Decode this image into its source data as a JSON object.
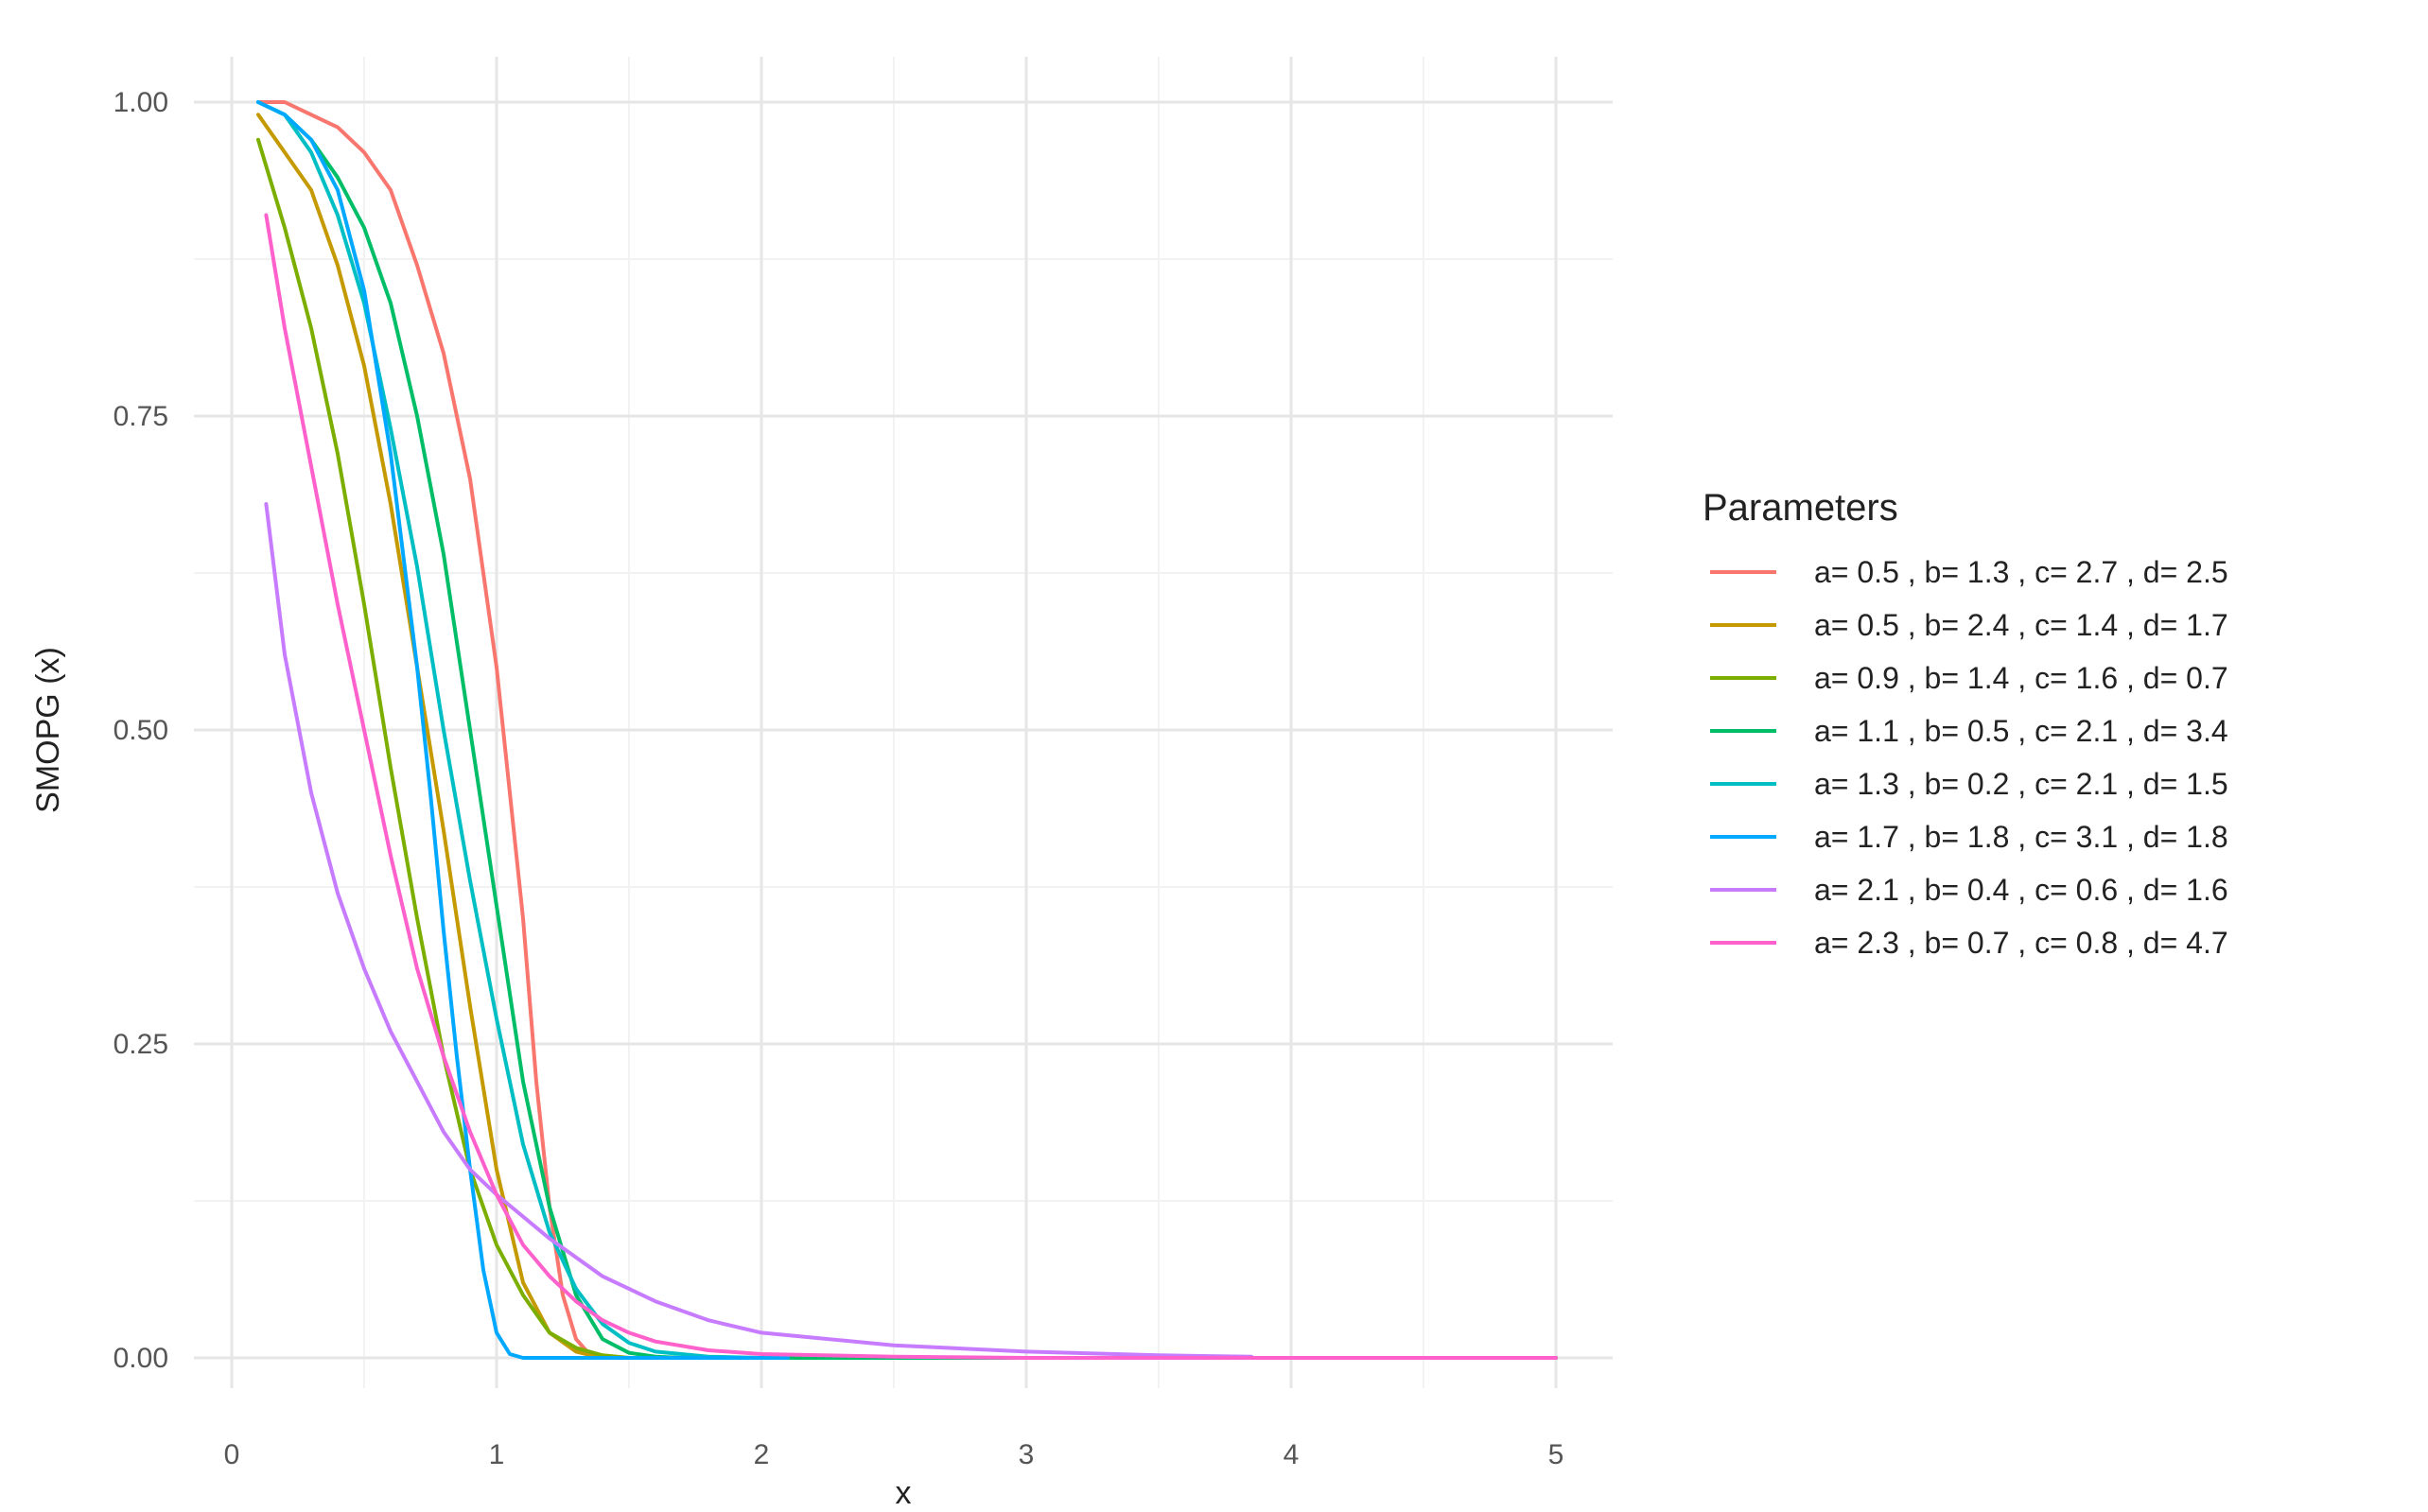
{
  "chart_data": {
    "type": "line",
    "title": "",
    "xlabel": "x",
    "ylabel": "SMOPG (x)",
    "xlim": [
      0,
      5
    ],
    "ylim": [
      0,
      1
    ],
    "x_ticks": [
      0,
      1,
      2,
      3,
      4,
      5
    ],
    "x_tick_labels": [
      "0",
      "1",
      "2",
      "3",
      "4",
      "5"
    ],
    "y_ticks": [
      0,
      0.25,
      0.5,
      0.75,
      1.0
    ],
    "y_tick_labels": [
      "0.00",
      "0.25",
      "0.50",
      "0.75",
      "1.00"
    ],
    "grid": true,
    "legend": {
      "title": "Parameters",
      "position": "right"
    },
    "series": [
      {
        "name": "a= 0.5 , b= 1.3 , c= 2.7 , d= 2.5",
        "color": "#F8766D",
        "x": [
          0.1,
          0.2,
          0.3,
          0.4,
          0.5,
          0.6,
          0.7,
          0.8,
          0.9,
          1.0,
          1.1,
          1.15,
          1.2,
          1.25,
          1.3,
          1.35,
          1.4,
          1.5,
          5.0
        ],
        "y": [
          1.0,
          1.0,
          0.99,
          0.98,
          0.96,
          0.93,
          0.87,
          0.8,
          0.7,
          0.55,
          0.35,
          0.22,
          0.12,
          0.05,
          0.015,
          0.003,
          0.0,
          0.0,
          0.0
        ]
      },
      {
        "name": "a= 0.5 , b= 2.4 , c= 1.4 , d= 1.7",
        "color": "#C49A00",
        "x": [
          0.1,
          0.2,
          0.3,
          0.4,
          0.5,
          0.6,
          0.7,
          0.8,
          0.9,
          1.0,
          1.1,
          1.2,
          1.3,
          1.4,
          1.5,
          5.0
        ],
        "y": [
          0.99,
          0.96,
          0.93,
          0.87,
          0.79,
          0.68,
          0.55,
          0.42,
          0.28,
          0.15,
          0.06,
          0.02,
          0.005,
          0.0,
          0.0,
          0.0
        ]
      },
      {
        "name": "a= 0.9 , b= 1.4 , c= 1.6 , d= 0.7",
        "color": "#7CAE00",
        "x": [
          0.1,
          0.2,
          0.3,
          0.4,
          0.5,
          0.6,
          0.7,
          0.8,
          0.9,
          1.0,
          1.1,
          1.2,
          1.3,
          1.4,
          1.5,
          5.0
        ],
        "y": [
          0.97,
          0.9,
          0.82,
          0.72,
          0.6,
          0.47,
          0.35,
          0.24,
          0.15,
          0.09,
          0.05,
          0.02,
          0.008,
          0.002,
          0.0,
          0.0
        ]
      },
      {
        "name": "a= 1.1 , b= 0.5 , c= 2.1 , d= 3.4",
        "color": "#00BE67",
        "x": [
          0.1,
          0.2,
          0.3,
          0.4,
          0.5,
          0.6,
          0.7,
          0.8,
          0.9,
          1.0,
          1.1,
          1.2,
          1.3,
          1.4,
          1.5,
          1.6,
          1.7,
          5.0
        ],
        "y": [
          1.0,
          0.99,
          0.97,
          0.94,
          0.9,
          0.84,
          0.75,
          0.64,
          0.5,
          0.36,
          0.22,
          0.12,
          0.05,
          0.015,
          0.004,
          0.001,
          0.0,
          0.0
        ]
      },
      {
        "name": "a= 1.3 , b= 0.2 , c= 2.1 , d= 1.5",
        "color": "#00BFC4",
        "x": [
          0.1,
          0.2,
          0.3,
          0.4,
          0.5,
          0.6,
          0.7,
          0.8,
          0.9,
          1.0,
          1.1,
          1.2,
          1.3,
          1.4,
          1.5,
          1.6,
          1.8,
          2.0,
          2.1
        ],
        "y": [
          1.0,
          0.99,
          0.96,
          0.91,
          0.84,
          0.74,
          0.63,
          0.5,
          0.38,
          0.27,
          0.17,
          0.1,
          0.055,
          0.027,
          0.012,
          0.005,
          0.001,
          0.0,
          0.0
        ]
      },
      {
        "name": "a= 1.7 , b= 1.8 , c= 3.1 , d= 1.8",
        "color": "#00A9FF",
        "x": [
          0.1,
          0.2,
          0.3,
          0.4,
          0.5,
          0.6,
          0.7,
          0.75,
          0.8,
          0.85,
          0.9,
          0.95,
          1.0,
          1.05,
          1.1,
          1.5,
          2.0,
          2.1
        ],
        "y": [
          1.0,
          0.99,
          0.97,
          0.93,
          0.85,
          0.72,
          0.55,
          0.45,
          0.34,
          0.24,
          0.15,
          0.07,
          0.02,
          0.003,
          0.0,
          0.0,
          0.0,
          0.0
        ]
      },
      {
        "name": "a= 2.1 , b= 0.4 , c= 0.6 , d= 1.6",
        "color": "#C77CFF",
        "x": [
          0.13,
          0.2,
          0.3,
          0.4,
          0.5,
          0.6,
          0.7,
          0.8,
          0.9,
          1.0,
          1.2,
          1.4,
          1.6,
          1.8,
          2.0,
          2.5,
          3.0,
          3.5,
          3.85
        ],
        "y": [
          0.68,
          0.56,
          0.45,
          0.37,
          0.31,
          0.26,
          0.22,
          0.18,
          0.15,
          0.13,
          0.095,
          0.065,
          0.045,
          0.03,
          0.02,
          0.01,
          0.005,
          0.002,
          0.001
        ]
      },
      {
        "name": "a= 2.3 , b= 0.7 , c= 0.8 , d= 4.7",
        "color": "#FF61CC",
        "x": [
          0.13,
          0.2,
          0.3,
          0.4,
          0.5,
          0.6,
          0.7,
          0.8,
          0.9,
          1.0,
          1.1,
          1.2,
          1.3,
          1.4,
          1.5,
          1.6,
          1.8,
          2.0,
          2.5,
          3.0,
          4.0,
          5.0
        ],
        "y": [
          0.91,
          0.82,
          0.71,
          0.6,
          0.5,
          0.4,
          0.31,
          0.24,
          0.18,
          0.13,
          0.09,
          0.065,
          0.045,
          0.03,
          0.02,
          0.013,
          0.006,
          0.003,
          0.001,
          0.0,
          0.0,
          0.0
        ]
      }
    ]
  }
}
